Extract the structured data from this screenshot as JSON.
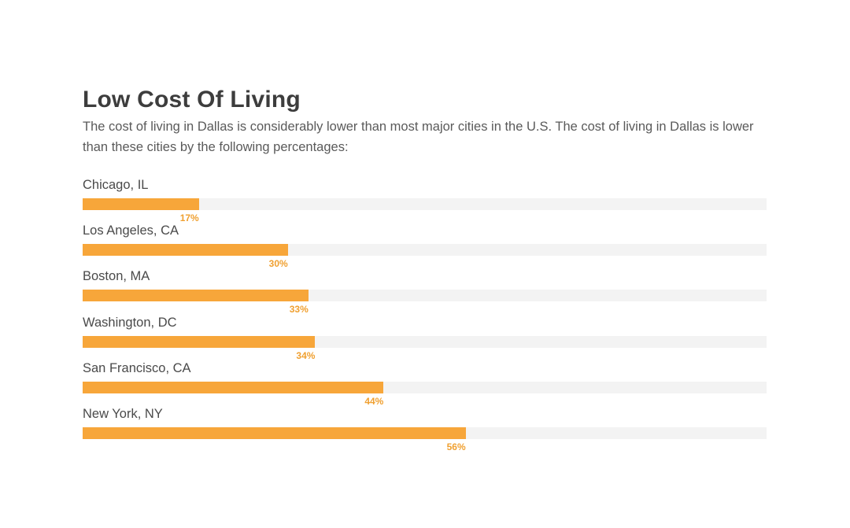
{
  "header": {
    "title": "Low Cost Of Living",
    "description": "The cost of living in Dallas is considerably lower than most major cities in the U.S. The cost of living in Dallas is lower than these cities by the following percentages:"
  },
  "colors": {
    "bar": "#F7A63A",
    "track": "#F3F3F3",
    "value_text": "#F0A030"
  },
  "chart_data": {
    "type": "bar",
    "orientation": "horizontal",
    "title": "Low Cost Of Living",
    "xlabel": "",
    "ylabel": "",
    "xlim": [
      0,
      100
    ],
    "unit": "%",
    "categories": [
      "Chicago, IL",
      "Los Angeles, CA",
      "Boston, MA",
      "Washington, DC",
      "San Francisco, CA",
      "New York, NY"
    ],
    "values": [
      17,
      30,
      33,
      34,
      44,
      56
    ],
    "value_labels": [
      "17%",
      "30%",
      "33%",
      "34%",
      "44%",
      "56%"
    ]
  }
}
